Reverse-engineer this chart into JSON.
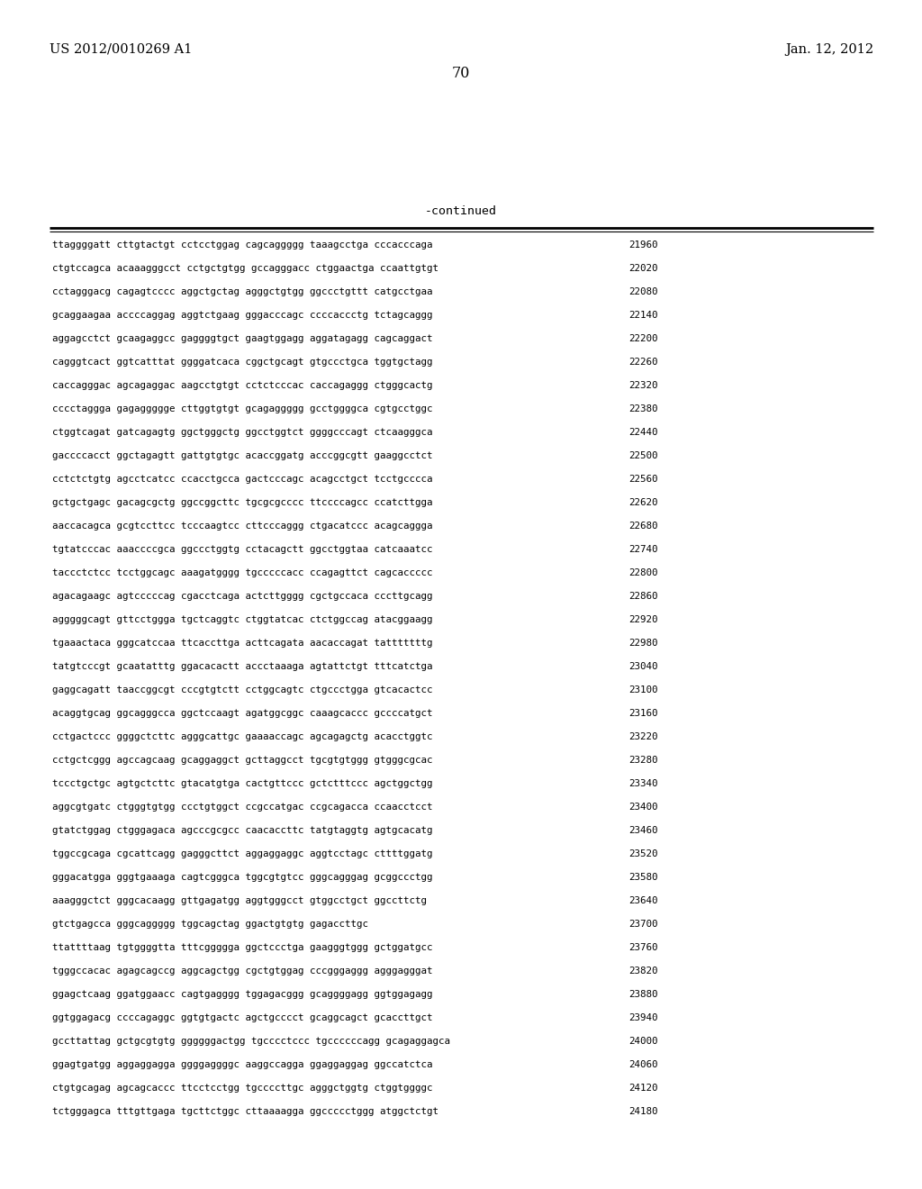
{
  "header_left": "US 2012/0010269 A1",
  "header_right": "Jan. 12, 2012",
  "page_number": "70",
  "continued_label": "-continued",
  "background_color": "#ffffff",
  "text_color": "#000000",
  "sequence_lines": [
    [
      "ttaggggatt cttgtactgt cctcctggag cagcaggggg taaagcctga cccacccaga",
      "21960"
    ],
    [
      "ctgtccagca acaaagggcct cctgctgtgg gccagggacc ctggaactga ccaattgtgt",
      "22020"
    ],
    [
      "cctagggacg cagagtcccc aggctgctag agggctgtgg ggccctgttt catgcctgaa",
      "22080"
    ],
    [
      "gcaggaagaa accccaggag aggtctgaag gggacccagc ccccaccctg tctagcaggg",
      "22140"
    ],
    [
      "aggagcctct gcaagaggcc gaggggtgct gaagtggagg aggatagagg cagcaggact",
      "22200"
    ],
    [
      "cagggtcact ggtcatttat ggggatcaca cggctgcagt gtgccctgca tggtgctagg",
      "22260"
    ],
    [
      "caccagggac agcagaggac aagcctgtgt cctctcccac caccagaggg ctgggcactg",
      "22320"
    ],
    [
      "cccctaggga gagaggggge cttggtgtgt gcagaggggg gcctggggca cgtgcctggc",
      "22380"
    ],
    [
      "ctggtcagat gatcagagtg ggctgggctg ggcctggtct ggggcccagt ctcaagggca",
      "22440"
    ],
    [
      "gaccccacct ggctagagtt gattgtgtgc acaccggatg acccggcgtt gaaggcctct",
      "22500"
    ],
    [
      "cctctctgtg agcctcatcc ccacctgcca gactcccagc acagcctgct tcctgcccca",
      "22560"
    ],
    [
      "gctgctgagc gacagcgctg ggccggcttc tgcgcgcccc ttccccagcc ccatcttgga",
      "22620"
    ],
    [
      "aaccacagca gcgtccttcc tcccaagtcc cttcccaggg ctgacatccc acagcaggga",
      "22680"
    ],
    [
      "tgtatcccac aaaccccgca ggccctggtg cctacagctt ggcctggtaa catcaaatcc",
      "22740"
    ],
    [
      "taccctctcc tcctggcagc aaagatgggg tgcccccacc ccagagttct cagcaccccc",
      "22800"
    ],
    [
      "agacagaagc agtcccccag cgacctcaga actcttgggg cgctgccaca cccttgcagg",
      "22860"
    ],
    [
      "agggggcagt gttcctggga tgctcaggtc ctggtatcac ctctggccag atacggaagg",
      "22920"
    ],
    [
      "tgaaactaca gggcatccaa ttcaccttga acttcagata aacaccagat tatttttttg",
      "22980"
    ],
    [
      "tatgtcccgt gcaatatttg ggacacactt accctaaaga agtattctgt tttcatctga",
      "23040"
    ],
    [
      "gaggcagatt taaccggcgt cccgtgtctt cctggcagtc ctgccctgga gtcacactcc",
      "23100"
    ],
    [
      "acaggtgcag ggcagggcca ggctccaagt agatggcggc caaagcaccc gccccatgct",
      "23160"
    ],
    [
      "cctgactccc ggggctcttc agggcattgc gaaaaccagc agcagagctg acacctggtc",
      "23220"
    ],
    [
      "cctgctcggg agccagcaag gcaggaggct gcttaggcct tgcgtgtggg gtgggcgcac",
      "23280"
    ],
    [
      "tccctgctgc agtgctcttc gtacatgtga cactgttccc gctctttccc agctggctgg",
      "23340"
    ],
    [
      "aggcgtgatc ctgggtgtgg ccctgtggct ccgccatgac ccgcagacca ccaacctcct",
      "23400"
    ],
    [
      "gtatctggag ctgggagaca agcccgcgcc caacaccttc tatgtaggtg agtgcacatg",
      "23460"
    ],
    [
      "tggccgcaga cgcattcagg gagggcttct aggaggaggc aggtcctagc cttttggatg",
      "23520"
    ],
    [
      "gggacatgga gggtgaaaga cagtcgggca tggcgtgtcc gggcagggag gcggccctgg",
      "23580"
    ],
    [
      "aaagggctct gggcacaagg gttgagatgg aggtgggcct gtggcctgct ggccttctg",
      "23640"
    ],
    [
      "gtctgagcca gggcaggggg tggcagctag ggactgtgtg gagaccttgc",
      "23700"
    ],
    [
      "ttattttaag tgtggggtta tttcggggga ggctccctga gaagggtggg gctggatgcc",
      "23760"
    ],
    [
      "tgggccacac agagcagccg aggcagctgg cgctgtggag cccgggaggg agggagggat",
      "23820"
    ],
    [
      "ggagctcaag ggatggaacc cagtgagggg tggagacggg gcaggggagg ggtggagagg",
      "23880"
    ],
    [
      "ggtggagacg ccccagaggc ggtgtgactc agctgcccct gcaggcagct gcaccttgct",
      "23940"
    ],
    [
      "gccttattag gctgcgtgtg ggggggactgg tgcccctccc tgccccccagg gcagaggagca",
      "24000"
    ],
    [
      "ggagtgatgg aggaggagga ggggaggggc aaggccagga ggaggaggag ggccatctca",
      "24060"
    ],
    [
      "ctgtgcagag agcagcaccc ttcctcctgg tgccccttgc agggctggtg ctggtggggc",
      "24120"
    ],
    [
      "tctgggagca tttgttgaga tgcttctggc cttaaaagga ggccccctggg atggctctgt",
      "24180"
    ]
  ]
}
